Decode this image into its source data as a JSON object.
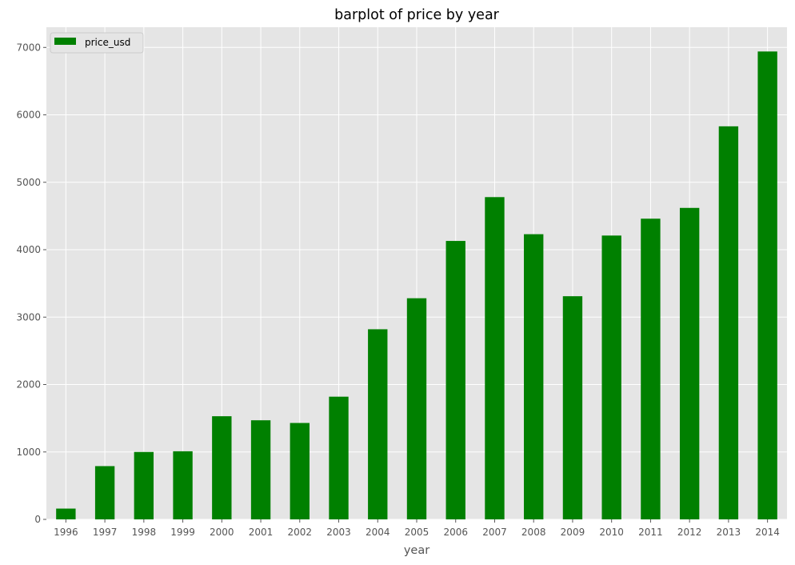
{
  "chart_data": {
    "type": "bar",
    "title": "barplot of price by year",
    "xlabel": "year",
    "ylabel": "",
    "ylim": [
      0,
      7300
    ],
    "yticks": [
      0,
      1000,
      2000,
      3000,
      4000,
      5000,
      6000,
      7000
    ],
    "categories": [
      "1996",
      "1997",
      "1998",
      "1999",
      "2000",
      "2001",
      "2002",
      "2003",
      "2004",
      "2005",
      "2006",
      "2007",
      "2008",
      "2009",
      "2010",
      "2011",
      "2012",
      "2013",
      "2014"
    ],
    "series": [
      {
        "name": "price_usd",
        "color": "#008000",
        "values": [
          160,
          790,
          1000,
          1010,
          1530,
          1470,
          1430,
          1820,
          2820,
          3280,
          4130,
          4780,
          4230,
          3310,
          4210,
          4460,
          4620,
          5830,
          6940
        ]
      }
    ],
    "legend": {
      "position": "top-left"
    },
    "grid": true,
    "style": {
      "background": "#e5e5e5",
      "grid_color": "#ffffff"
    }
  }
}
